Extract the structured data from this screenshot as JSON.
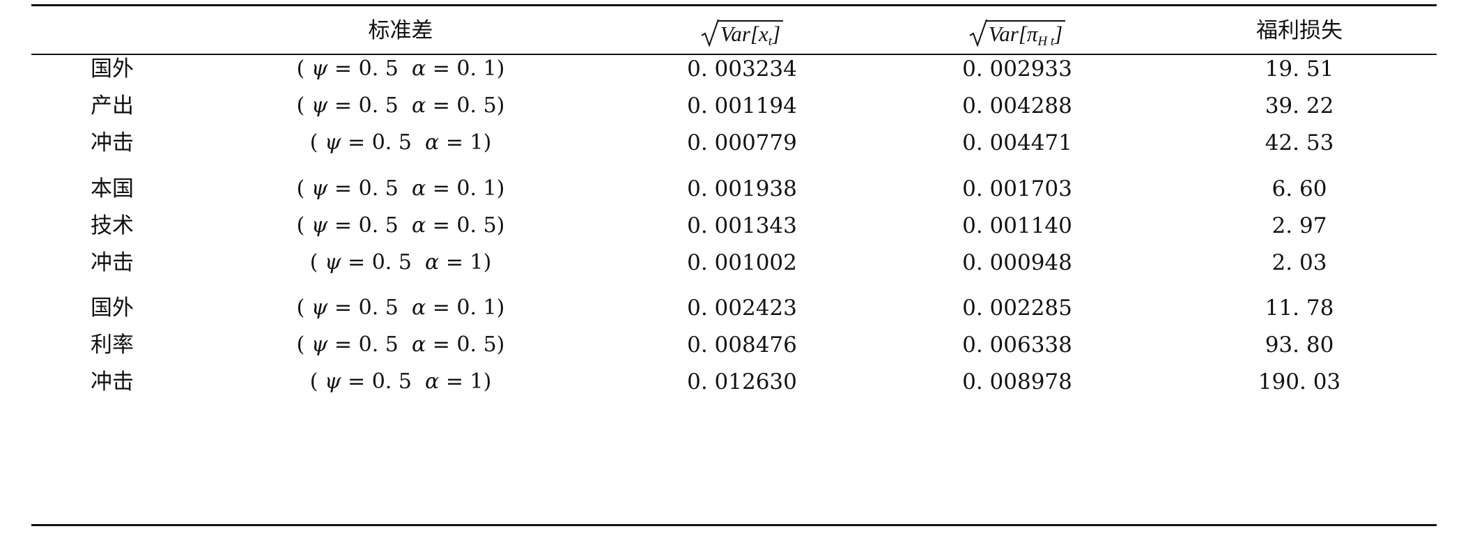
{
  "table": {
    "headers": {
      "param": "标准差",
      "x_var_open": "Var",
      "x_var_sym": "x",
      "x_var_sub": "t",
      "pi_var_open": "Var",
      "pi_var_sym": "π",
      "pi_var_sub": "H t",
      "welfare": "福利损失"
    },
    "rows": [
      {
        "label": "国外",
        "psi": "ψ",
        "psi_val": "0. 5",
        "alpha": "α",
        "alpha_val": "0. 1",
        "x": "0. 003234",
        "pi": "0. 002933",
        "welfare": "19. 51"
      },
      {
        "label": "产出",
        "psi": "ψ",
        "psi_val": "0. 5",
        "alpha": "α",
        "alpha_val": "0. 5",
        "x": "0. 001194",
        "pi": "0. 004288",
        "welfare": "39. 22"
      },
      {
        "label": "冲击",
        "psi": "ψ",
        "psi_val": "0. 5",
        "alpha": "α",
        "alpha_val": "1",
        "x": "0. 000779",
        "pi": "0. 004471",
        "welfare": "42. 53"
      },
      {
        "label": "本国",
        "psi": "ψ",
        "psi_val": "0. 5",
        "alpha": "α",
        "alpha_val": "0. 1",
        "x": "0. 001938",
        "pi": "0. 001703",
        "welfare": "6. 60"
      },
      {
        "label": "技术",
        "psi": "ψ",
        "psi_val": "0. 5",
        "alpha": "α",
        "alpha_val": "0. 5",
        "x": "0. 001343",
        "pi": "0. 001140",
        "welfare": "2. 97"
      },
      {
        "label": "冲击",
        "psi": "ψ",
        "psi_val": "0. 5",
        "alpha": "α",
        "alpha_val": "1",
        "x": "0. 001002",
        "pi": "0. 000948",
        "welfare": "2. 03"
      },
      {
        "label": "国外",
        "psi": "ψ",
        "psi_val": "0. 5",
        "alpha": "α",
        "alpha_val": "0. 1",
        "x": "0. 002423",
        "pi": "0. 002285",
        "welfare": "11. 78"
      },
      {
        "label": "利率",
        "psi": "ψ",
        "psi_val": "0. 5",
        "alpha": "α",
        "alpha_val": "0. 5",
        "x": "0. 008476",
        "pi": "0. 006338",
        "welfare": "93. 80"
      },
      {
        "label": "冲击",
        "psi": "ψ",
        "psi_val": "0. 5",
        "alpha": "α",
        "alpha_val": "1",
        "x": "0. 012630",
        "pi": "0. 008978",
        "welfare": "190. 03"
      }
    ]
  }
}
